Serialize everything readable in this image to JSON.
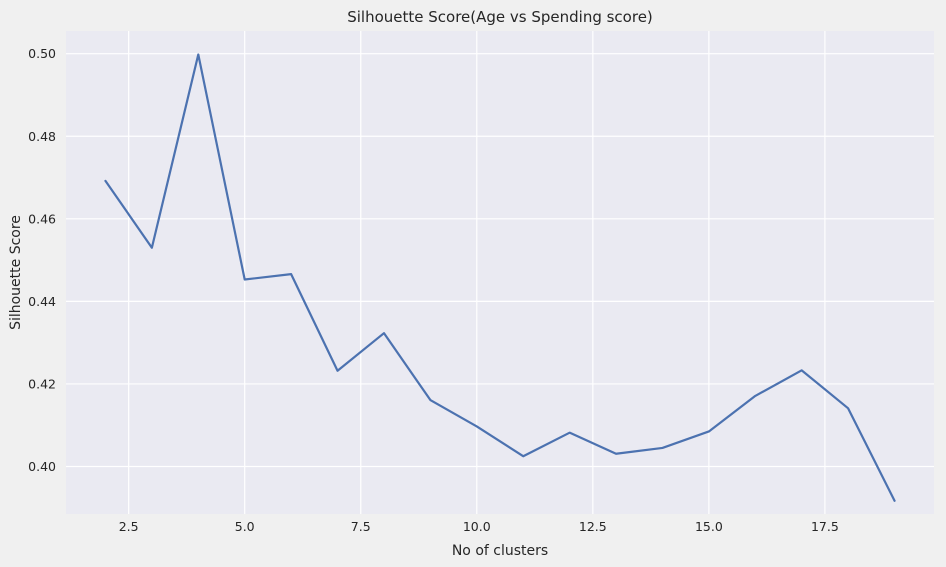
{
  "chart_data": {
    "type": "line",
    "title": "Silhouette Score(Age vs Spending score)",
    "xlabel": "No of clusters",
    "ylabel": "Silhouette Score",
    "xlim": [
      1.15,
      19.85
    ],
    "ylim": [
      0.3885,
      0.5055
    ],
    "x_ticks": [
      2.5,
      5.0,
      7.5,
      10.0,
      12.5,
      15.0,
      17.5
    ],
    "x_tick_labels": [
      "2.5",
      "5.0",
      "7.5",
      "10.0",
      "12.5",
      "15.0",
      "17.5"
    ],
    "y_ticks": [
      0.4,
      0.42,
      0.44,
      0.46,
      0.48,
      0.5
    ],
    "y_tick_labels": [
      "0.40",
      "0.42",
      "0.44",
      "0.46",
      "0.48",
      "0.50"
    ],
    "grid": true,
    "series": [
      {
        "x": [
          2,
          3,
          4,
          5,
          6,
          7,
          8,
          9,
          10,
          11,
          12,
          13,
          14,
          15,
          16,
          17,
          18,
          19
        ],
        "y": [
          0.4692,
          0.453,
          0.4998,
          0.4453,
          0.4466,
          0.4232,
          0.4323,
          0.4161,
          0.4097,
          0.4025,
          0.4082,
          0.4031,
          0.4045,
          0.4085,
          0.4171,
          0.4233,
          0.4141,
          0.3917
        ]
      }
    ],
    "colors": {
      "line": "#4c72b0",
      "plot_background": "#eaeaf2",
      "grid": "#ffffff",
      "figure_background": "#f0f0f0"
    }
  }
}
